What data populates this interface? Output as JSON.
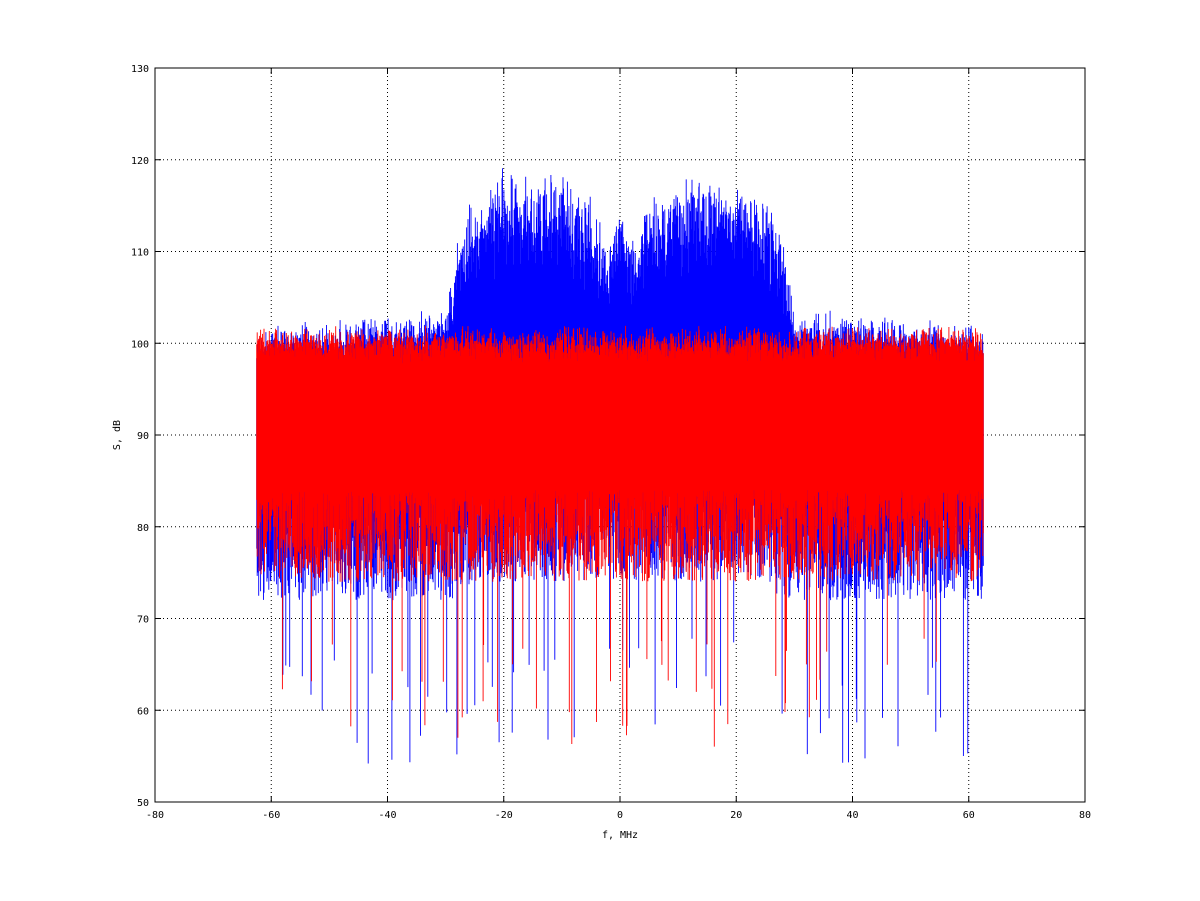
{
  "chart_data": {
    "type": "line",
    "title": "",
    "xlabel": "f, MHz",
    "ylabel": "S, dB",
    "xlim": [
      -80,
      80
    ],
    "ylim": [
      50,
      130
    ],
    "xticks": [
      -80,
      -60,
      -40,
      -20,
      0,
      20,
      40,
      60,
      80
    ],
    "yticks": [
      50,
      60,
      70,
      80,
      90,
      100,
      110,
      120,
      130
    ],
    "grid": true,
    "legend": "none",
    "series": [
      {
        "color": "#0000ff",
        "x_range": [
          -62.5,
          62.5
        ],
        "envelope_x": [
          -62.5,
          -30,
          -28,
          -25,
          -20,
          -15,
          -10,
          -5,
          -2,
          0,
          2,
          5,
          10,
          15,
          20,
          25,
          28,
          30,
          62.5
        ],
        "max_y": [
          102,
          104,
          112,
          117,
          120,
          120,
          119,
          116,
          112,
          116,
          112,
          116,
          119,
          120,
          120,
          117,
          112,
          104,
          102
        ],
        "min_y": [
          72,
          72,
          72,
          74,
          74,
          74,
          74,
          74,
          74,
          74,
          74,
          74,
          74,
          74,
          74,
          74,
          72,
          72,
          72
        ]
      },
      {
        "color": "#ff0000",
        "x_range": [
          -62.5,
          62.5
        ],
        "envelope_x": [
          -62.5,
          62.5
        ],
        "max_y": [
          102,
          102
        ],
        "min_y": [
          74,
          74
        ]
      }
    ]
  }
}
